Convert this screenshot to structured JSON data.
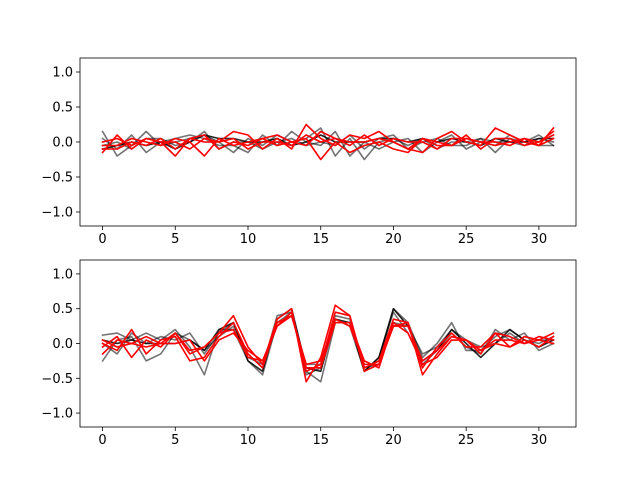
{
  "chart_data": [
    {
      "type": "line",
      "title": "",
      "xlabel": "",
      "ylabel": "",
      "xlim": [
        -1.55,
        32.55
      ],
      "ylim": [
        -1.2,
        1.2
      ],
      "xticks": [
        0,
        5,
        10,
        15,
        20,
        25,
        30
      ],
      "yticks": [
        -1.0,
        -0.5,
        0.0,
        0.5,
        1.0
      ],
      "xtick_labels": [
        "0",
        "5",
        "10",
        "15",
        "20",
        "25",
        "30"
      ],
      "ytick_labels": [
        "−1.0",
        "−0.5",
        "0.0",
        "0.5",
        "1.0"
      ],
      "grid": false,
      "x": [
        0,
        1,
        2,
        3,
        4,
        5,
        6,
        7,
        8,
        9,
        10,
        11,
        12,
        13,
        14,
        15,
        16,
        17,
        18,
        19,
        20,
        21,
        22,
        23,
        24,
        25,
        26,
        27,
        28,
        29,
        30,
        31
      ],
      "series": [
        {
          "color": "#000000",
          "opacity": 0.55,
          "values": [
            0.15,
            -0.2,
            -0.05,
            0.15,
            -0.05,
            0.0,
            0.05,
            0.1,
            0.0,
            -0.15,
            0.05,
            -0.05,
            0.1,
            0.0,
            0.05,
            0.2,
            -0.2,
            0.05,
            -0.25,
            0.0,
            0.05,
            -0.05,
            0.05,
            -0.1,
            0.0,
            0.0,
            0.05,
            -0.15,
            0.05,
            0.0,
            0.1,
            -0.05
          ]
        },
        {
          "color": "#000000",
          "opacity": 0.55,
          "values": [
            0.05,
            -0.1,
            0.1,
            -0.15,
            0.0,
            0.05,
            0.1,
            0.05,
            -0.05,
            -0.05,
            -0.15,
            0.1,
            -0.05,
            0.15,
            0.0,
            -0.05,
            0.15,
            -0.2,
            0.0,
            -0.1,
            0.0,
            0.05,
            -0.15,
            0.0,
            0.1,
            -0.1,
            0.0,
            -0.05,
            0.1,
            0.0,
            -0.05,
            -0.05
          ]
        },
        {
          "color": "#000000",
          "opacity": 0.55,
          "values": [
            -0.05,
            0.0,
            -0.1,
            0.05,
            0.05,
            -0.05,
            0.0,
            0.15,
            -0.1,
            0.0,
            0.0,
            -0.1,
            0.0,
            0.05,
            -0.05,
            0.0,
            -0.05,
            0.1,
            -0.1,
            0.05,
            0.1,
            -0.1,
            0.0,
            0.05,
            -0.05,
            -0.05,
            0.05,
            0.0,
            0.0,
            -0.05,
            0.05,
            0.0
          ]
        },
        {
          "color": "#000000",
          "opacity": 0.85,
          "values": [
            -0.1,
            -0.05,
            0.0,
            -0.05,
            0.0,
            -0.1,
            0.0,
            0.1,
            0.05,
            0.05,
            0.0,
            0.0,
            0.05,
            -0.05,
            0.0,
            0.1,
            0.0,
            0.0,
            0.0,
            0.05,
            0.05,
            0.0,
            0.05,
            0.0,
            0.05,
            0.0,
            -0.05,
            0.05,
            0.0,
            0.0,
            0.05,
            0.05
          ]
        },
        {
          "color": "#ff0000",
          "opacity": 1.0,
          "values": [
            -0.15,
            0.1,
            -0.1,
            0.05,
            0.0,
            -0.2,
            0.05,
            0.0,
            0.0,
            0.15,
            0.1,
            -0.1,
            0.05,
            -0.1,
            0.25,
            0.05,
            -0.05,
            0.1,
            0.05,
            0.15,
            0.0,
            -0.1,
            -0.15,
            0.05,
            0.15,
            0.0,
            -0.05,
            0.2,
            0.1,
            0.0,
            -0.05,
            0.2
          ]
        },
        {
          "color": "#ff0000",
          "opacity": 1.0,
          "values": [
            -0.05,
            -0.05,
            0.05,
            0.0,
            -0.05,
            0.05,
            0.0,
            -0.2,
            0.05,
            -0.05,
            0.0,
            0.05,
            -0.05,
            0.0,
            0.05,
            -0.25,
            0.0,
            -0.15,
            -0.05,
            0.0,
            -0.1,
            -0.15,
            0.05,
            -0.05,
            -0.05,
            0.1,
            -0.1,
            0.05,
            0.05,
            -0.05,
            0.0,
            0.15
          ]
        },
        {
          "color": "#ff0000",
          "opacity": 1.0,
          "values": [
            -0.1,
            -0.1,
            0.0,
            -0.05,
            0.05,
            -0.1,
            0.05,
            0.1,
            -0.1,
            0.0,
            -0.05,
            0.05,
            0.1,
            0.0,
            -0.05,
            0.15,
            0.05,
            -0.05,
            0.1,
            -0.05,
            0.05,
            0.0,
            0.0,
            -0.1,
            0.05,
            0.05,
            0.0,
            0.0,
            -0.05,
            0.05,
            0.0,
            0.1
          ]
        },
        {
          "color": "#ff0000",
          "opacity": 1.0,
          "values": [
            0.0,
            0.05,
            -0.05,
            0.05,
            0.0,
            0.0,
            -0.1,
            0.05,
            0.0,
            0.05,
            -0.1,
            0.0,
            0.0,
            -0.05,
            0.1,
            0.0,
            0.05,
            0.0,
            0.0,
            0.05,
            0.0,
            -0.1,
            0.05,
            0.0,
            -0.05,
            0.05,
            0.0,
            -0.05,
            0.0,
            0.05,
            -0.05,
            0.05
          ]
        }
      ]
    },
    {
      "type": "line",
      "title": "",
      "xlabel": "",
      "ylabel": "",
      "xlim": [
        -1.55,
        32.55
      ],
      "ylim": [
        -1.2,
        1.2
      ],
      "xticks": [
        0,
        5,
        10,
        15,
        20,
        25,
        30
      ],
      "yticks": [
        -1.0,
        -0.5,
        0.0,
        0.5,
        1.0
      ],
      "xtick_labels": [
        "0",
        "5",
        "10",
        "15",
        "20",
        "25",
        "30"
      ],
      "ytick_labels": [
        "−1.0",
        "−0.5",
        "0.0",
        "0.5",
        "1.0"
      ],
      "grid": false,
      "x": [
        0,
        1,
        2,
        3,
        4,
        5,
        6,
        7,
        8,
        9,
        10,
        11,
        12,
        13,
        14,
        15,
        16,
        17,
        18,
        19,
        20,
        21,
        22,
        23,
        24,
        25,
        26,
        27,
        28,
        29,
        30,
        31
      ],
      "series": [
        {
          "color": "#000000",
          "opacity": 0.55,
          "values": [
            0.12,
            0.15,
            0.05,
            0.15,
            0.05,
            0.2,
            -0.05,
            -0.45,
            0.2,
            0.2,
            -0.25,
            -0.45,
            0.3,
            0.45,
            -0.4,
            -0.55,
            0.3,
            0.3,
            -0.35,
            -0.25,
            0.5,
            0.3,
            -0.2,
            0.0,
            0.3,
            -0.1,
            -0.1,
            0.1,
            0.2,
            0.05,
            0.0,
            0.1
          ]
        },
        {
          "color": "#000000",
          "opacity": 0.55,
          "values": [
            -0.25,
            0.05,
            0.1,
            -0.25,
            -0.15,
            0.15,
            0.05,
            -0.1,
            0.1,
            0.25,
            -0.2,
            -0.3,
            0.25,
            0.4,
            -0.3,
            -0.3,
            0.35,
            0.25,
            -0.4,
            -0.2,
            0.45,
            0.15,
            -0.3,
            -0.1,
            0.15,
            -0.05,
            -0.15,
            0.2,
            0.05,
            0.15,
            -0.1,
            0.0
          ]
        },
        {
          "color": "#000000",
          "opacity": 0.55,
          "values": [
            0.0,
            -0.15,
            0.15,
            0.0,
            0.1,
            0.05,
            0.15,
            -0.15,
            0.15,
            0.3,
            -0.15,
            -0.35,
            0.4,
            0.45,
            -0.45,
            -0.35,
            0.4,
            0.35,
            -0.35,
            -0.3,
            0.3,
            0.25,
            -0.15,
            -0.05,
            0.2,
            0.05,
            -0.05,
            0.0,
            0.15,
            0.0,
            0.05,
            0.05
          ]
        },
        {
          "color": "#000000",
          "opacity": 0.85,
          "values": [
            0.05,
            0.0,
            0.05,
            0.0,
            0.0,
            0.0,
            0.05,
            -0.1,
            0.2,
            0.3,
            -0.25,
            -0.4,
            0.35,
            0.5,
            -0.35,
            -0.4,
            0.35,
            0.3,
            -0.4,
            -0.2,
            0.5,
            0.25,
            -0.25,
            -0.1,
            0.2,
            0.0,
            -0.2,
            0.0,
            0.2,
            0.05,
            -0.05,
            0.05
          ]
        },
        {
          "color": "#ff0000",
          "opacity": 1.0,
          "values": [
            -0.05,
            0.1,
            -0.2,
            0.05,
            -0.05,
            0.15,
            -0.1,
            -0.05,
            0.15,
            0.4,
            -0.05,
            -0.3,
            0.35,
            0.5,
            -0.55,
            -0.2,
            0.55,
            0.4,
            -0.4,
            -0.3,
            0.25,
            0.3,
            -0.45,
            -0.15,
            0.1,
            0.05,
            -0.15,
            0.15,
            0.1,
            0.0,
            0.05,
            0.15
          ]
        },
        {
          "color": "#ff0000",
          "opacity": 1.0,
          "values": [
            -0.15,
            0.05,
            0.0,
            -0.05,
            0.0,
            0.15,
            -0.15,
            -0.05,
            0.15,
            0.2,
            -0.2,
            -0.25,
            0.25,
            0.45,
            -0.4,
            -0.3,
            0.45,
            0.4,
            -0.35,
            -0.25,
            0.35,
            0.3,
            -0.35,
            -0.05,
            0.15,
            -0.05,
            -0.05,
            0.15,
            -0.05,
            0.05,
            -0.05,
            0.1
          ]
        },
        {
          "color": "#ff0000",
          "opacity": 1.0,
          "values": [
            0.0,
            -0.1,
            0.2,
            -0.15,
            0.05,
            0.1,
            -0.25,
            -0.2,
            0.1,
            0.3,
            -0.15,
            -0.35,
            0.3,
            0.4,
            -0.3,
            -0.25,
            0.35,
            0.25,
            -0.3,
            -0.3,
            0.25,
            0.25,
            -0.25,
            -0.1,
            0.1,
            0.05,
            -0.1,
            0.0,
            -0.05,
            0.1,
            0.05,
            0.0
          ]
        },
        {
          "color": "#ff0000",
          "opacity": 1.0,
          "values": [
            0.05,
            -0.05,
            0.0,
            0.1,
            0.0,
            0.0,
            0.05,
            -0.25,
            0.05,
            0.15,
            -0.1,
            -0.25,
            0.25,
            0.4,
            -0.35,
            -0.35,
            0.3,
            0.3,
            -0.25,
            -0.35,
            0.3,
            0.15,
            -0.3,
            -0.2,
            0.05,
            0.05,
            -0.1,
            0.05,
            0.05,
            0.0,
            0.1,
            0.05
          ]
        }
      ]
    }
  ]
}
